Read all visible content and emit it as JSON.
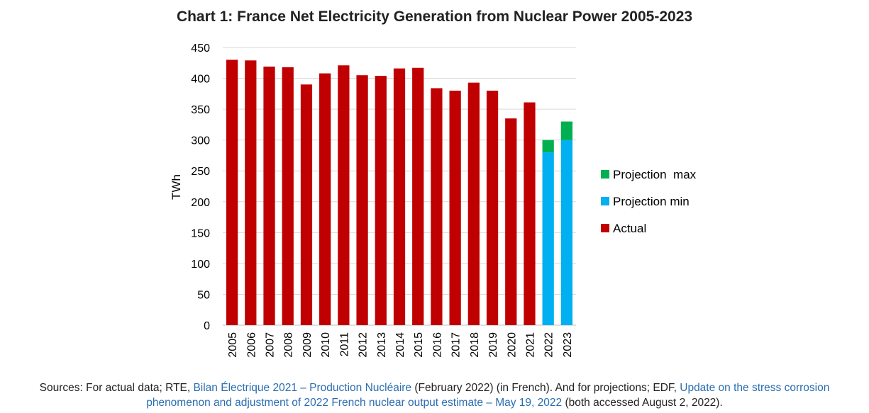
{
  "chart_data": {
    "type": "bar",
    "stacked": true,
    "title": "Chart 1: France Net Electricity Generation from Nuclear Power 2005-2023",
    "xlabel": "",
    "ylabel": "TWh",
    "ylim": [
      0,
      450
    ],
    "yticks": [
      0,
      50,
      100,
      150,
      200,
      250,
      300,
      350,
      400,
      450
    ],
    "grid": true,
    "legend_position": "right",
    "categories": [
      "2005",
      "2006",
      "2007",
      "2008",
      "2009",
      "2010",
      "2011",
      "2012",
      "2013",
      "2014",
      "2015",
      "2016",
      "2017",
      "2018",
      "2019",
      "2020",
      "2021",
      "2022",
      "2023"
    ],
    "series": [
      {
        "name": "Actual",
        "color": "#c00000",
        "values": [
          430,
          429,
          419,
          418,
          390,
          408,
          421,
          405,
          404,
          416,
          417,
          384,
          380,
          393,
          380,
          335,
          361,
          null,
          null
        ]
      },
      {
        "name": "Projection min",
        "color": "#00b0f0",
        "values": [
          null,
          null,
          null,
          null,
          null,
          null,
          null,
          null,
          null,
          null,
          null,
          null,
          null,
          null,
          null,
          null,
          null,
          280,
          300
        ]
      },
      {
        "name": "Projection  max",
        "color": "#00b050",
        "values": [
          null,
          null,
          null,
          null,
          null,
          null,
          null,
          null,
          null,
          null,
          null,
          null,
          null,
          null,
          null,
          null,
          null,
          20,
          30
        ]
      }
    ],
    "legend_order": [
      "Projection  max",
      "Projection min",
      "Actual"
    ]
  },
  "sources": {
    "prefix": "Sources: For actual data; RTE, ",
    "link1": "Bilan Électrique 2021 – Production Nucléaire",
    "mid": "  (February 2022) (in French). And for projections; EDF, ",
    "link2a": "Update on the stress corrosion",
    "link2b": "phenomenon and adjustment of 2022 French nuclear output estimate – May 19, 2022",
    "suffix": "  (both accessed August 2, 2022)."
  }
}
